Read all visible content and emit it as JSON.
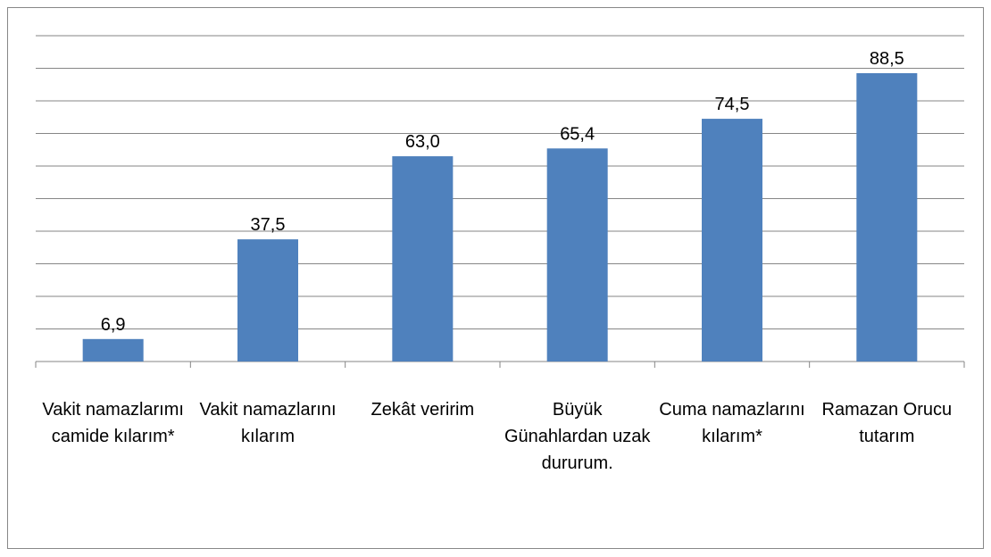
{
  "chart_data": {
    "type": "bar",
    "categories": [
      "Vakit namazlarımı camide kılarım*",
      "Vakit namazlarını kılarım",
      "Zekât veririm",
      "Büyük Günahlardan uzak dururum.",
      "Cuma namazlarını kılarım*",
      "Ramazan Orucu tutarım"
    ],
    "values": [
      6.9,
      37.5,
      63.0,
      65.4,
      74.5,
      88.5
    ],
    "value_labels": [
      "6,9",
      "37,5",
      "63,0",
      "65,4",
      "74,5",
      "88,5"
    ],
    "color": "#4f81bd",
    "ylim": [
      0,
      100
    ],
    "yticks": [
      0,
      10,
      20,
      30,
      40,
      50,
      60,
      70,
      80,
      90,
      100
    ],
    "grid": true
  }
}
